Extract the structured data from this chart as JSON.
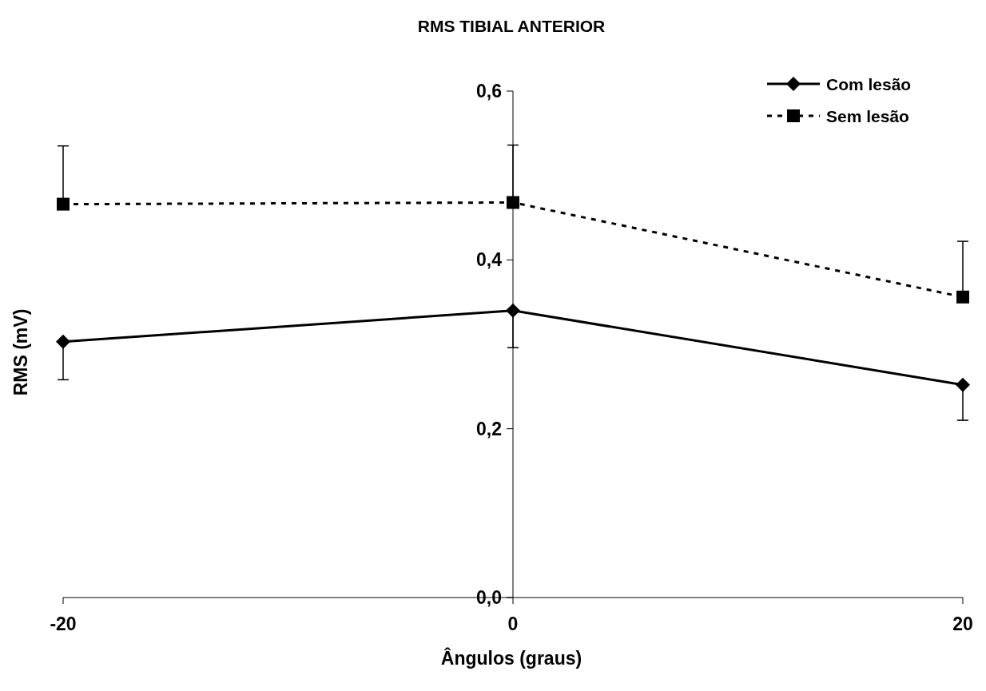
{
  "chart_data": {
    "type": "line",
    "title": "RMS TIBIAL ANTERIOR",
    "xlabel": "Ângulos (graus)",
    "ylabel": "RMS (mV)",
    "x": [
      -20,
      0,
      20
    ],
    "series": [
      {
        "name": "Com lesão",
        "color": "#000000",
        "marker": "diamond",
        "line_style": "solid",
        "values": [
          0.303,
          0.34,
          0.252
        ],
        "errors": [
          [
            0.258,
            0.303
          ],
          [
            0.296,
            0.34
          ],
          [
            0.21,
            0.252
          ]
        ]
      },
      {
        "name": "Sem lesão",
        "color": "#000000",
        "marker": "square",
        "line_style": "dashed",
        "values": [
          0.466,
          0.468,
          0.356
        ],
        "errors": [
          [
            0.466,
            0.535
          ],
          [
            0.468,
            0.536
          ],
          [
            0.356,
            0.422
          ]
        ]
      }
    ],
    "xlim": [
      -20,
      20
    ],
    "xticks": [
      -20,
      0,
      20
    ],
    "ylim": [
      0,
      0.6
    ],
    "yticks": [
      {
        "value": 0,
        "label": "0,0"
      },
      {
        "value": 0.2,
        "label": "0,2"
      },
      {
        "value": 0.4,
        "label": "0,4"
      },
      {
        "value": 0.6,
        "label": "0,6"
      }
    ],
    "grid": false,
    "legend": "top right"
  }
}
